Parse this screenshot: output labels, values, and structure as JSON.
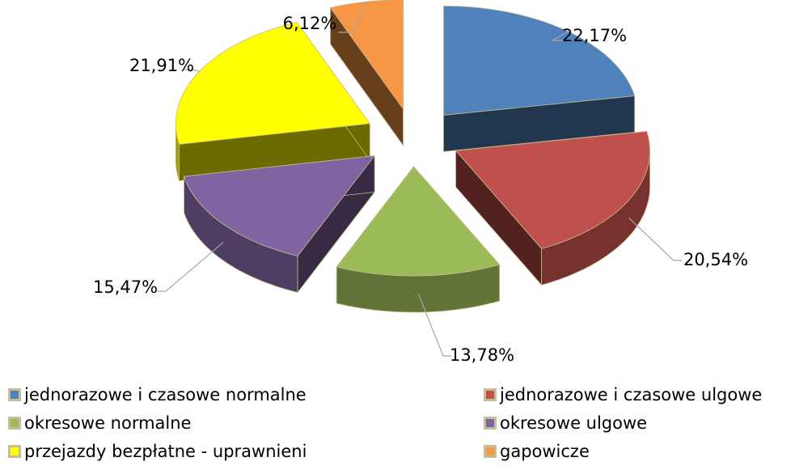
{
  "chart_data": {
    "type": "pie",
    "categories": [
      "jednorazowe i czasowe normalne",
      "jednorazowe i czasowe ulgowe",
      "okresowe normalne",
      "okresowe ulgowe",
      "przejazdy bezpłatne - uprawnieni",
      "gapowicze"
    ],
    "values": [
      22.17,
      20.54,
      13.78,
      15.47,
      21.91,
      6.12
    ],
    "value_labels": [
      "22,17%",
      "20,54%",
      "13,78%",
      "15,47%",
      "21,91%",
      "6,12%"
    ],
    "colors": [
      "#4f81bd",
      "#c0504d",
      "#9bbb59",
      "#8064a2",
      "#ffff00",
      "#f79646"
    ],
    "legend": "bottom"
  }
}
